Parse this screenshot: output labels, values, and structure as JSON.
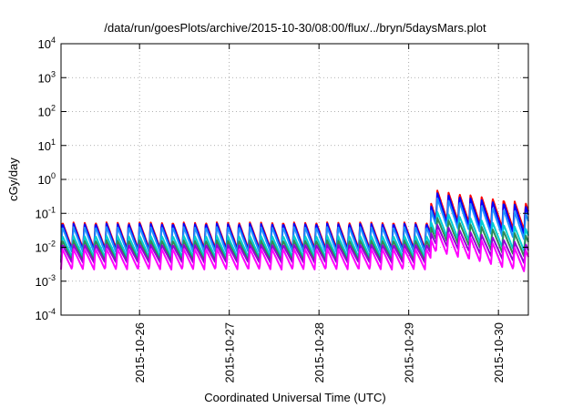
{
  "chart_data": {
    "type": "line",
    "title": "/data/run/goesPlots/archive/2015-10-30/08:00/flux/../bryn/5daysMars.plot",
    "xlabel": "Coordinated Universal Time (UTC)",
    "ylabel": "cGy/day",
    "yscale": "log",
    "ylim": [
      0.0001,
      10000
    ],
    "y_ticks": [
      {
        "value": 0.0001,
        "base": "10",
        "exp": "-4"
      },
      {
        "value": 0.001,
        "base": "10",
        "exp": "-3"
      },
      {
        "value": 0.01,
        "base": "10",
        "exp": "-2"
      },
      {
        "value": 0.1,
        "base": "10",
        "exp": "-1"
      },
      {
        "value": 1,
        "base": "10",
        "exp": "0"
      },
      {
        "value": 10,
        "base": "10",
        "exp": "1"
      },
      {
        "value": 100,
        "base": "10",
        "exp": "2"
      },
      {
        "value": 1000,
        "base": "10",
        "exp": "3"
      },
      {
        "value": 10000,
        "base": "10",
        "exp": "4"
      }
    ],
    "xlim": [
      "2015-10-25 03:00",
      "2015-10-30 08:00"
    ],
    "x_ticks": [
      "2015-10-26",
      "2015-10-27",
      "2015-10-28",
      "2015-10-29",
      "2015-10-30"
    ],
    "grid": true,
    "sawtooth_period_hours": 2.95,
    "event_onset": "2015-10-29 06:00",
    "series": [
      {
        "color": "#ff0000",
        "pre_peak": 0.055,
        "pre_trough": 0.009,
        "post_peak": 0.5,
        "post_decay_peak": 0.2
      },
      {
        "color": "#0000ff",
        "pre_peak": 0.05,
        "pre_trough": 0.008,
        "post_peak": 0.42,
        "post_decay_peak": 0.16
      },
      {
        "color": "#1e90ff",
        "pre_peak": 0.04,
        "pre_trough": 0.007,
        "post_peak": 0.3,
        "post_decay_peak": 0.1
      },
      {
        "color": "#00ced1",
        "pre_peak": 0.022,
        "pre_trough": 0.005,
        "post_peak": 0.12,
        "post_decay_peak": 0.035
      },
      {
        "color": "#2e8b57",
        "pre_peak": 0.016,
        "pre_trough": 0.004,
        "post_peak": 0.08,
        "post_decay_peak": 0.022
      },
      {
        "color": "#9400d3",
        "pre_peak": 0.012,
        "pre_trough": 0.0035,
        "post_peak": 0.05,
        "post_decay_peak": 0.012
      },
      {
        "color": "#ff00ff",
        "pre_peak": 0.009,
        "pre_trough": 0.0022,
        "post_peak": 0.035,
        "post_decay_peak": 0.008
      }
    ]
  }
}
